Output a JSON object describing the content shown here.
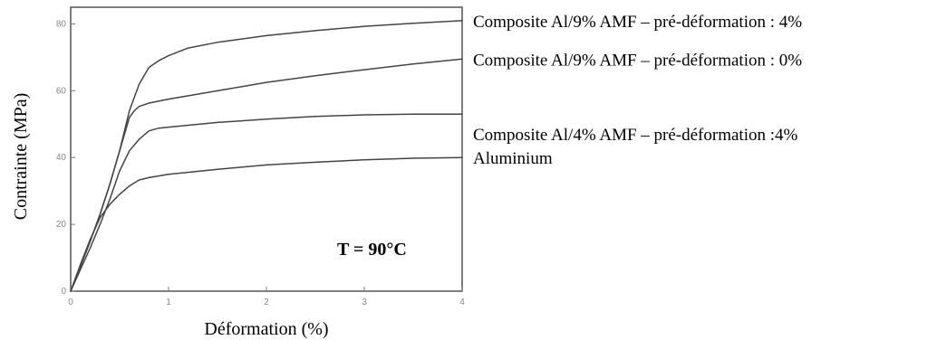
{
  "chart_data": {
    "type": "line",
    "xlabel": "Déformation (%)",
    "ylabel": "Contrainte (MPa)",
    "annotation": "T = 90°C",
    "xlim": [
      0,
      4
    ],
    "ylim": [
      0,
      85
    ],
    "x_ticks": [
      0,
      1,
      2,
      3,
      4
    ],
    "y_ticks": [
      0,
      20,
      40,
      60,
      80
    ],
    "x_tick_labels": [
      "0",
      "1",
      "2",
      "3",
      "4"
    ],
    "y_tick_labels": [
      "0",
      "20",
      "40",
      "60",
      "80"
    ],
    "grid": false,
    "legend_position": "right, next to line ends",
    "line_color": "#444444",
    "series": [
      {
        "name": "Composite Al/9% AMF – pré-déformation : 4%",
        "points": [
          [
            0,
            0
          ],
          [
            0.1,
            7.5
          ],
          [
            0.2,
            15
          ],
          [
            0.3,
            23
          ],
          [
            0.4,
            32
          ],
          [
            0.5,
            42
          ],
          [
            0.6,
            54
          ],
          [
            0.7,
            62
          ],
          [
            0.8,
            67
          ],
          [
            0.9,
            69
          ],
          [
            1.0,
            70.5
          ],
          [
            1.2,
            72.8
          ],
          [
            1.5,
            74.5
          ],
          [
            2.0,
            76.5
          ],
          [
            2.5,
            78
          ],
          [
            3.0,
            79.3
          ],
          [
            3.5,
            80.2
          ],
          [
            4.0,
            81
          ]
        ]
      },
      {
        "name": "Composite Al/9% AMF – pré-déformation : 0%",
        "points": [
          [
            0,
            0
          ],
          [
            0.1,
            7.5
          ],
          [
            0.2,
            15
          ],
          [
            0.3,
            23
          ],
          [
            0.4,
            32
          ],
          [
            0.5,
            42
          ],
          [
            0.6,
            52
          ],
          [
            0.65,
            54
          ],
          [
            0.7,
            55.3
          ],
          [
            0.8,
            56.3
          ],
          [
            1.0,
            57.5
          ],
          [
            1.5,
            60
          ],
          [
            2.0,
            62.5
          ],
          [
            2.5,
            64.5
          ],
          [
            3.0,
            66.3
          ],
          [
            3.5,
            68
          ],
          [
            4.0,
            69.5
          ]
        ]
      },
      {
        "name": "Composite Al/4% AMF – pré-déformation :4%",
        "points": [
          [
            0,
            0
          ],
          [
            0.1,
            6.5
          ],
          [
            0.2,
            13
          ],
          [
            0.3,
            20
          ],
          [
            0.4,
            27.5
          ],
          [
            0.5,
            36
          ],
          [
            0.6,
            42
          ],
          [
            0.7,
            45.5
          ],
          [
            0.8,
            48
          ],
          [
            0.9,
            48.8
          ],
          [
            1.0,
            49.1
          ],
          [
            1.5,
            50.5
          ],
          [
            2.0,
            51.5
          ],
          [
            2.5,
            52.3
          ],
          [
            3.0,
            52.8
          ],
          [
            3.5,
            53
          ],
          [
            4.0,
            53
          ]
        ]
      },
      {
        "name": "Aluminium",
        "points": [
          [
            0,
            0
          ],
          [
            0.1,
            8
          ],
          [
            0.2,
            15.5
          ],
          [
            0.3,
            22
          ],
          [
            0.4,
            26
          ],
          [
            0.5,
            29
          ],
          [
            0.6,
            31.5
          ],
          [
            0.7,
            33.3
          ],
          [
            0.8,
            34
          ],
          [
            1.0,
            35
          ],
          [
            1.5,
            36.5
          ],
          [
            2.0,
            37.8
          ],
          [
            2.5,
            38.6
          ],
          [
            3.0,
            39.3
          ],
          [
            3.5,
            39.8
          ],
          [
            4.0,
            40
          ]
        ]
      }
    ]
  }
}
